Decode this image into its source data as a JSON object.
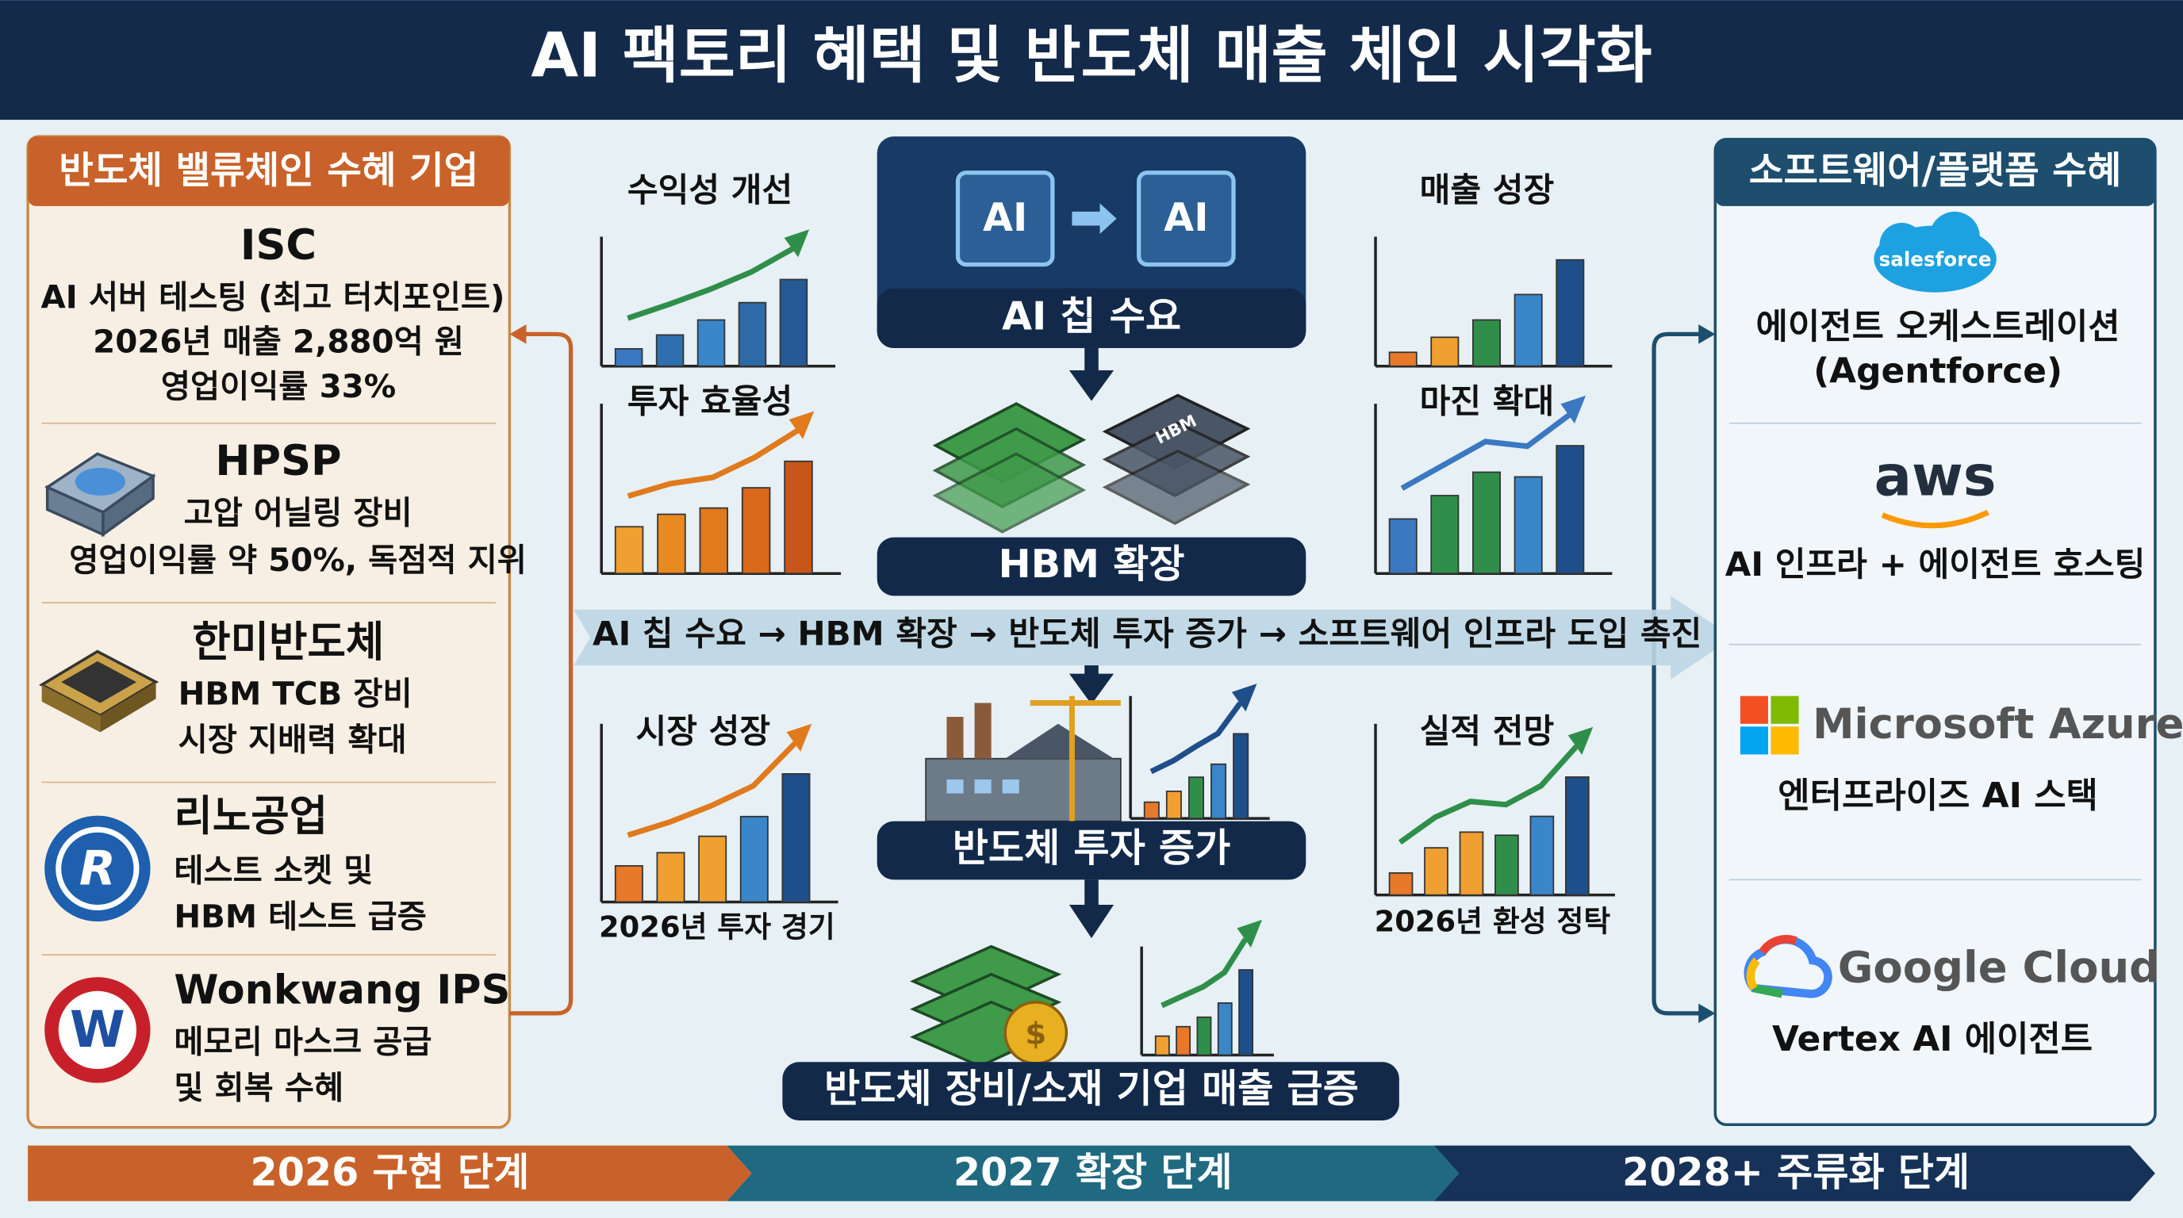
{
  "title": "AI 팩토리 혜택 및 반도체 매출 체인 시각화",
  "left_panel": {
    "title": "반도체 밸류체인 수혜 기업",
    "companies": [
      {
        "name": "ISC",
        "lines": [
          "AI 서버 테스팅 (최고 터치포인트)",
          "2026년 매출 2,880억 원",
          "영업이익률 33%"
        ]
      },
      {
        "name": "HPSP",
        "lines": [
          "고압 어닐링 장비",
          "영업이익률 약 50%, 독점적 지위"
        ]
      },
      {
        "name": "한미반도체",
        "lines": [
          "HBM TCB 장비",
          "시장 지배력 확대"
        ]
      },
      {
        "name": "리노공업",
        "lines": [
          "테스트 소켓 및",
          "HBM 테스트 급증"
        ]
      },
      {
        "name": "Wonkwang IPS",
        "lines": [
          "메모리 마스크 공급",
          "및 회복 수혜"
        ]
      }
    ]
  },
  "center": {
    "chip_labels": [
      "AI",
      "AI"
    ],
    "hbm_label": "HBM",
    "flow": [
      "AI 칩 수요",
      "HBM 확장",
      "반도체 투자 증가",
      "반도체 장비/소재 기업 매출 급증"
    ],
    "chain": "AI 칩 수요 → HBM 확장 → 반도체 투자 증가 → 소프트웨어 인프라 도입 촉진",
    "charts": [
      {
        "title": "수익성 개선"
      },
      {
        "title": "투자 효율성"
      },
      {
        "title": "매출 성장"
      },
      {
        "title": "마진 확대"
      },
      {
        "title": "시장 성장",
        "caption": "2026년 투자 경기"
      },
      {
        "title": "실적 전망",
        "caption": "2026년 환성 정탁"
      }
    ]
  },
  "right_panel": {
    "title": "소프트웨어/플랫폼 수혜",
    "platforms": [
      {
        "logo": "salesforce",
        "lines": [
          "에이전트 오케스트레이션",
          "(Agentforce)"
        ]
      },
      {
        "logo": "aws",
        "lines": [
          "AI 인프라 + 에이전트 호스팅"
        ]
      },
      {
        "logo": "Microsoft Azure",
        "lines": [
          "엔터프라이즈 AI 스택"
        ]
      },
      {
        "logo": "Google Cloud",
        "lines": [
          "Vertex AI 에이전트"
        ]
      }
    ]
  },
  "phases": [
    "2026 구현 단계",
    "2027 확장 단계",
    "2028+ 주류화 단계"
  ]
}
